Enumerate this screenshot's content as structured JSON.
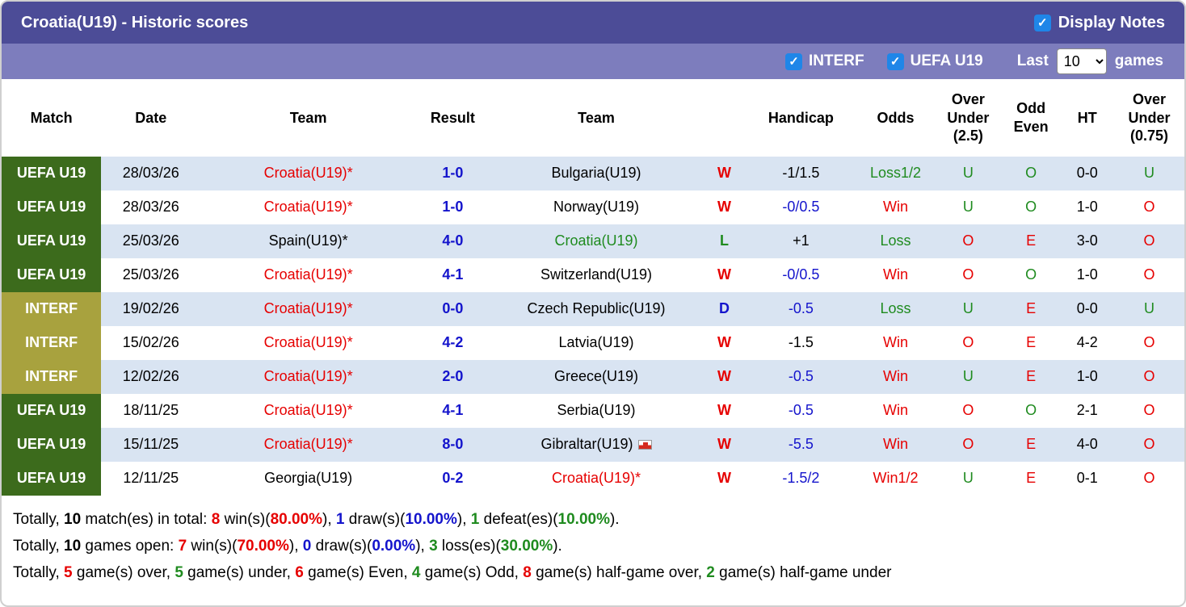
{
  "colors": {
    "red": "#e60000",
    "green": "#1f8b1f",
    "blue": "#1414cc",
    "black": "#000000",
    "header_bg": "#4c4c97",
    "subheader_bg": "#7d7dbd",
    "row_alt": "#d9e4f2",
    "uefa_badge": "#3c6b1c",
    "interf_badge": "#a8a23e",
    "checkbox_blue": "#1f86e8"
  },
  "header": {
    "title": "Croatia(U19) - Historic scores",
    "display_notes_label": "Display Notes",
    "display_notes_checked": true
  },
  "filters": {
    "interf_label": "INTERF",
    "interf_checked": true,
    "uefa_label": "UEFA U19",
    "uefa_checked": true,
    "last_label": "Last",
    "games_value": "10",
    "games_label": "games"
  },
  "table": {
    "columns": [
      "Match",
      "Date",
      "Team",
      "Result",
      "Team",
      "",
      "Handicap",
      "Odds",
      "Over Under (2.5)",
      "Odd Even",
      "HT",
      "Over Under (0.75)"
    ],
    "rows": [
      {
        "league": "UEFA U19",
        "style": "uefa",
        "date": "28/03/26",
        "team1": {
          "t": "Croatia(U19)*",
          "c": "red"
        },
        "result": "1-0",
        "team2": {
          "t": "Bulgaria(U19)",
          "c": "black"
        },
        "wdl": {
          "t": "W",
          "c": "red"
        },
        "handicap": {
          "t": "-1/1.5",
          "c": "black"
        },
        "odds": {
          "t": "Loss1/2",
          "c": "green"
        },
        "ou25": {
          "t": "U",
          "c": "green"
        },
        "oe": {
          "t": "O",
          "c": "green"
        },
        "ht": "0-0",
        "ou075": {
          "t": "U",
          "c": "green"
        }
      },
      {
        "league": "UEFA U19",
        "style": "uefa",
        "date": "28/03/26",
        "team1": {
          "t": "Croatia(U19)*",
          "c": "red"
        },
        "result": "1-0",
        "team2": {
          "t": "Norway(U19)",
          "c": "black"
        },
        "wdl": {
          "t": "W",
          "c": "red"
        },
        "handicap": {
          "t": "-0/0.5",
          "c": "blue"
        },
        "odds": {
          "t": "Win",
          "c": "red"
        },
        "ou25": {
          "t": "U",
          "c": "green"
        },
        "oe": {
          "t": "O",
          "c": "green"
        },
        "ht": "1-0",
        "ou075": {
          "t": "O",
          "c": "red"
        }
      },
      {
        "league": "UEFA U19",
        "style": "uefa",
        "date": "25/03/26",
        "team1": {
          "t": "Spain(U19)*",
          "c": "black"
        },
        "result": "4-0",
        "team2": {
          "t": "Croatia(U19)",
          "c": "green"
        },
        "wdl": {
          "t": "L",
          "c": "green"
        },
        "handicap": {
          "t": "+1",
          "c": "black"
        },
        "odds": {
          "t": "Loss",
          "c": "green"
        },
        "ou25": {
          "t": "O",
          "c": "red"
        },
        "oe": {
          "t": "E",
          "c": "red"
        },
        "ht": "3-0",
        "ou075": {
          "t": "O",
          "c": "red"
        }
      },
      {
        "league": "UEFA U19",
        "style": "uefa",
        "date": "25/03/26",
        "team1": {
          "t": "Croatia(U19)*",
          "c": "red"
        },
        "result": "4-1",
        "team2": {
          "t": "Switzerland(U19)",
          "c": "black"
        },
        "wdl": {
          "t": "W",
          "c": "red"
        },
        "handicap": {
          "t": "-0/0.5",
          "c": "blue"
        },
        "odds": {
          "t": "Win",
          "c": "red"
        },
        "ou25": {
          "t": "O",
          "c": "red"
        },
        "oe": {
          "t": "O",
          "c": "green"
        },
        "ht": "1-0",
        "ou075": {
          "t": "O",
          "c": "red"
        }
      },
      {
        "league": "INTERF",
        "style": "interf",
        "date": "19/02/26",
        "team1": {
          "t": "Croatia(U19)*",
          "c": "red"
        },
        "result": "0-0",
        "team2": {
          "t": "Czech Republic(U19)",
          "c": "black"
        },
        "wdl": {
          "t": "D",
          "c": "blue"
        },
        "handicap": {
          "t": "-0.5",
          "c": "blue"
        },
        "odds": {
          "t": "Loss",
          "c": "green"
        },
        "ou25": {
          "t": "U",
          "c": "green"
        },
        "oe": {
          "t": "E",
          "c": "red"
        },
        "ht": "0-0",
        "ou075": {
          "t": "U",
          "c": "green"
        }
      },
      {
        "league": "INTERF",
        "style": "interf",
        "date": "15/02/26",
        "team1": {
          "t": "Croatia(U19)*",
          "c": "red"
        },
        "result": "4-2",
        "team2": {
          "t": "Latvia(U19)",
          "c": "black"
        },
        "wdl": {
          "t": "W",
          "c": "red"
        },
        "handicap": {
          "t": "-1.5",
          "c": "black"
        },
        "odds": {
          "t": "Win",
          "c": "red"
        },
        "ou25": {
          "t": "O",
          "c": "red"
        },
        "oe": {
          "t": "E",
          "c": "red"
        },
        "ht": "4-2",
        "ou075": {
          "t": "O",
          "c": "red"
        }
      },
      {
        "league": "INTERF",
        "style": "interf",
        "date": "12/02/26",
        "team1": {
          "t": "Croatia(U19)*",
          "c": "red"
        },
        "result": "2-0",
        "team2": {
          "t": "Greece(U19)",
          "c": "black"
        },
        "wdl": {
          "t": "W",
          "c": "red"
        },
        "handicap": {
          "t": "-0.5",
          "c": "blue"
        },
        "odds": {
          "t": "Win",
          "c": "red"
        },
        "ou25": {
          "t": "U",
          "c": "green"
        },
        "oe": {
          "t": "E",
          "c": "red"
        },
        "ht": "1-0",
        "ou075": {
          "t": "O",
          "c": "red"
        }
      },
      {
        "league": "UEFA U19",
        "style": "uefa",
        "date": "18/11/25",
        "team1": {
          "t": "Croatia(U19)*",
          "c": "red"
        },
        "result": "4-1",
        "team2": {
          "t": "Serbia(U19)",
          "c": "black"
        },
        "wdl": {
          "t": "W",
          "c": "red"
        },
        "handicap": {
          "t": "-0.5",
          "c": "blue"
        },
        "odds": {
          "t": "Win",
          "c": "red"
        },
        "ou25": {
          "t": "O",
          "c": "red"
        },
        "oe": {
          "t": "O",
          "c": "green"
        },
        "ht": "2-1",
        "ou075": {
          "t": "O",
          "c": "red"
        }
      },
      {
        "league": "UEFA U19",
        "style": "uefa",
        "date": "15/11/25",
        "team1": {
          "t": "Croatia(U19)*",
          "c": "red"
        },
        "result": "8-0",
        "team2": {
          "t": "Gibraltar(U19)",
          "c": "black",
          "flag": "gibraltar-flag-icon"
        },
        "wdl": {
          "t": "W",
          "c": "red"
        },
        "handicap": {
          "t": "-5.5",
          "c": "blue"
        },
        "odds": {
          "t": "Win",
          "c": "red"
        },
        "ou25": {
          "t": "O",
          "c": "red"
        },
        "oe": {
          "t": "E",
          "c": "red"
        },
        "ht": "4-0",
        "ou075": {
          "t": "O",
          "c": "red"
        }
      },
      {
        "league": "UEFA U19",
        "style": "uefa",
        "date": "12/11/25",
        "team1": {
          "t": "Georgia(U19)",
          "c": "black"
        },
        "result": "0-2",
        "team2": {
          "t": "Croatia(U19)*",
          "c": "red"
        },
        "wdl": {
          "t": "W",
          "c": "red"
        },
        "handicap": {
          "t": "-1.5/2",
          "c": "blue"
        },
        "odds": {
          "t": "Win1/2",
          "c": "red"
        },
        "ou25": {
          "t": "U",
          "c": "green"
        },
        "oe": {
          "t": "E",
          "c": "red"
        },
        "ht": "0-1",
        "ou075": {
          "t": "O",
          "c": "red"
        }
      }
    ]
  },
  "summary": {
    "lines": [
      [
        {
          "t": "Totally, "
        },
        {
          "t": "10",
          "b": 1
        },
        {
          "t": " match(es) in total: "
        },
        {
          "t": "8",
          "b": 1,
          "c": "red"
        },
        {
          "t": " win(s)("
        },
        {
          "t": "80.00%",
          "b": 1,
          "c": "red"
        },
        {
          "t": "), "
        },
        {
          "t": "1",
          "b": 1,
          "c": "blue"
        },
        {
          "t": " draw(s)("
        },
        {
          "t": "10.00%",
          "b": 1,
          "c": "blue"
        },
        {
          "t": "), "
        },
        {
          "t": "1",
          "b": 1,
          "c": "green"
        },
        {
          "t": " defeat(es)("
        },
        {
          "t": "10.00%",
          "b": 1,
          "c": "green"
        },
        {
          "t": ")."
        }
      ],
      [
        {
          "t": "Totally, "
        },
        {
          "t": "10",
          "b": 1
        },
        {
          "t": " games open: "
        },
        {
          "t": "7",
          "b": 1,
          "c": "red"
        },
        {
          "t": " win(s)("
        },
        {
          "t": "70.00%",
          "b": 1,
          "c": "red"
        },
        {
          "t": "), "
        },
        {
          "t": "0",
          "b": 1,
          "c": "blue"
        },
        {
          "t": " draw(s)("
        },
        {
          "t": "0.00%",
          "b": 1,
          "c": "blue"
        },
        {
          "t": "), "
        },
        {
          "t": "3",
          "b": 1,
          "c": "green"
        },
        {
          "t": " loss(es)("
        },
        {
          "t": "30.00%",
          "b": 1,
          "c": "green"
        },
        {
          "t": ")."
        }
      ],
      [
        {
          "t": "Totally, "
        },
        {
          "t": "5",
          "b": 1,
          "c": "red"
        },
        {
          "t": " game(s) over, "
        },
        {
          "t": "5",
          "b": 1,
          "c": "green"
        },
        {
          "t": " game(s) under, "
        },
        {
          "t": "6",
          "b": 1,
          "c": "red"
        },
        {
          "t": " game(s) Even, "
        },
        {
          "t": "4",
          "b": 1,
          "c": "green"
        },
        {
          "t": " game(s) Odd, "
        },
        {
          "t": "8",
          "b": 1,
          "c": "red"
        },
        {
          "t": " game(s) half-game over, "
        },
        {
          "t": "2",
          "b": 1,
          "c": "green"
        },
        {
          "t": " game(s) half-game under"
        }
      ]
    ]
  }
}
